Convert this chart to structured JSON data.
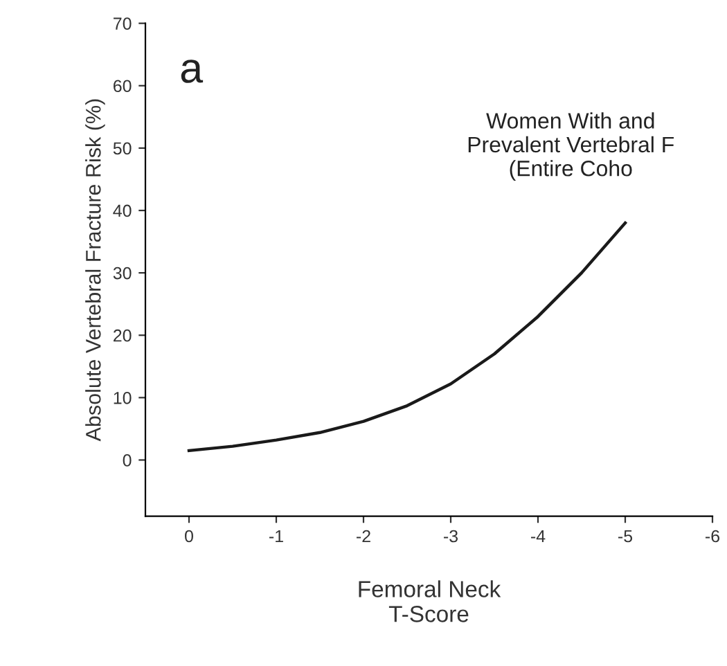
{
  "chart_data": {
    "type": "line",
    "xlabel": "Femoral Neck\nT-Score",
    "ylabel": "Absolute Vertebral Fracture Risk (%)",
    "x": [
      0,
      -0.5,
      -1,
      -1.5,
      -2,
      -2.5,
      -3,
      -3.5,
      -4,
      -4.5,
      -5
    ],
    "series": [
      {
        "color": "#1a1a1a",
        "values": [
          1.5,
          2.2,
          3.2,
          4.4,
          6.2,
          8.7,
          12.2,
          17,
          23,
          30,
          38
        ]
      }
    ],
    "xlim": [
      0.5,
      -6
    ],
    "ylim": [
      -9,
      70
    ],
    "xticks": [
      0,
      -1,
      -2,
      -3,
      -4,
      -5,
      -6
    ],
    "yticks": [
      0,
      10,
      20,
      30,
      40,
      50,
      60,
      70
    ],
    "grid": false,
    "legend": false,
    "marker": "none",
    "line_style": "solid",
    "annotations": [
      "a",
      "Women With and\nPrevalent Vertebral F\n(Entire Coho"
    ]
  }
}
